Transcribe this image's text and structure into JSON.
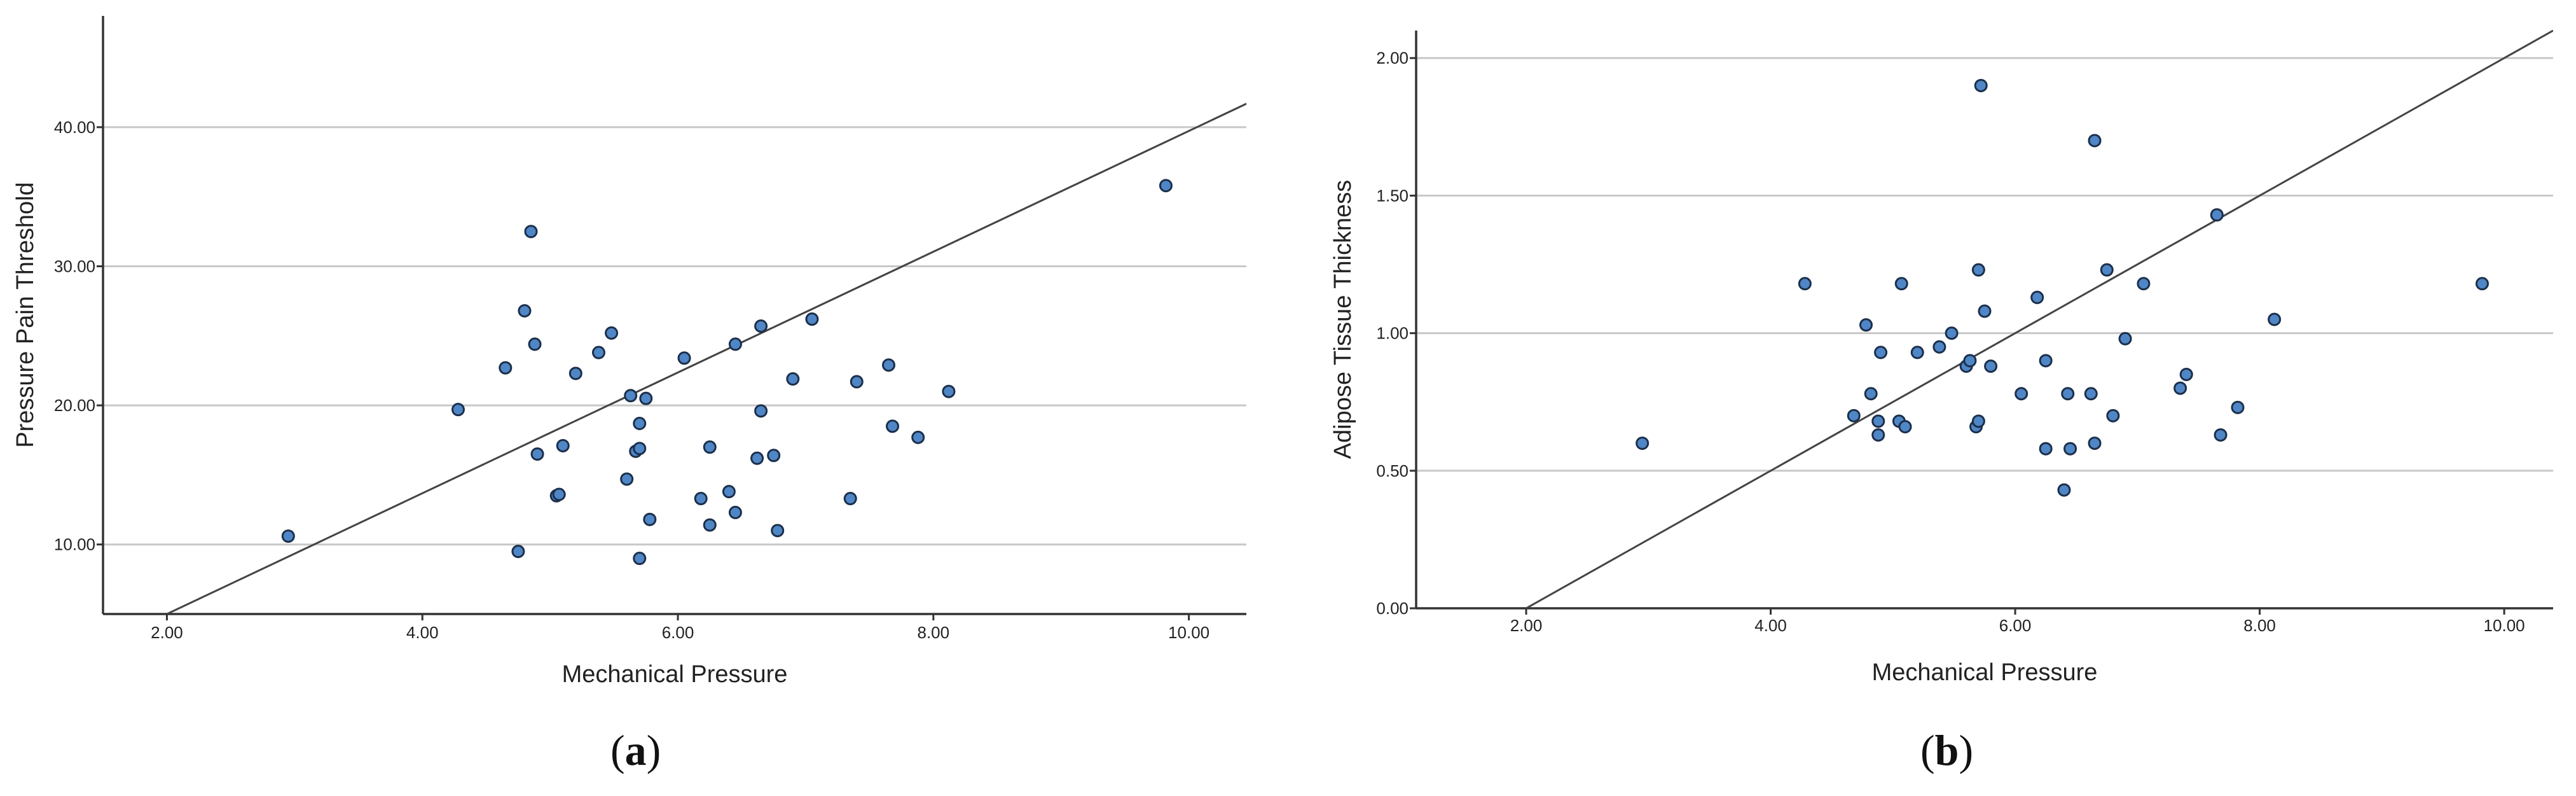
{
  "chart_data": [
    {
      "panel": "a",
      "type": "scatter",
      "caption": {
        "open": "(",
        "letter": "a",
        "close": ")"
      },
      "xlabel": "Mechanical Pressure",
      "ylabel": "Pressure Pain Threshold",
      "xlim": [
        1.5,
        10.45
      ],
      "ylim": [
        5.0,
        48.0
      ],
      "xticks": [
        "2.00",
        "4.00",
        "6.00",
        "8.00",
        "10.00"
      ],
      "yticks": [
        "10.00",
        "20.00",
        "30.00",
        "40.00"
      ],
      "grid": "horizontal",
      "legend": "none",
      "fit_line": {
        "x": [
          2.0,
          10.5
        ],
        "y": [
          5.0,
          41.9
        ]
      },
      "points": [
        {
          "x": 2.95,
          "y": 10.6
        },
        {
          "x": 4.28,
          "y": 19.7
        },
        {
          "x": 4.65,
          "y": 22.7
        },
        {
          "x": 4.75,
          "y": 9.5
        },
        {
          "x": 4.8,
          "y": 26.8
        },
        {
          "x": 4.85,
          "y": 32.5
        },
        {
          "x": 4.88,
          "y": 24.4
        },
        {
          "x": 4.9,
          "y": 16.5
        },
        {
          "x": 5.05,
          "y": 13.5
        },
        {
          "x": 5.07,
          "y": 13.6
        },
        {
          "x": 5.1,
          "y": 17.1
        },
        {
          "x": 5.2,
          "y": 22.3
        },
        {
          "x": 5.38,
          "y": 23.8
        },
        {
          "x": 5.48,
          "y": 25.2
        },
        {
          "x": 5.6,
          "y": 14.7
        },
        {
          "x": 5.63,
          "y": 20.7
        },
        {
          "x": 5.67,
          "y": 16.7
        },
        {
          "x": 5.7,
          "y": 16.9
        },
        {
          "x": 5.7,
          "y": 18.7
        },
        {
          "x": 5.7,
          "y": 9.0
        },
        {
          "x": 5.75,
          "y": 20.5
        },
        {
          "x": 5.78,
          "y": 11.8
        },
        {
          "x": 6.05,
          "y": 23.4
        },
        {
          "x": 6.18,
          "y": 13.3
        },
        {
          "x": 6.25,
          "y": 11.4
        },
        {
          "x": 6.25,
          "y": 17.0
        },
        {
          "x": 6.4,
          "y": 13.8
        },
        {
          "x": 6.45,
          "y": 12.3
        },
        {
          "x": 6.45,
          "y": 24.4
        },
        {
          "x": 6.62,
          "y": 16.2
        },
        {
          "x": 6.65,
          "y": 25.7
        },
        {
          "x": 6.65,
          "y": 19.6
        },
        {
          "x": 6.75,
          "y": 16.4
        },
        {
          "x": 6.78,
          "y": 11.0
        },
        {
          "x": 6.9,
          "y": 21.9
        },
        {
          "x": 7.05,
          "y": 26.2
        },
        {
          "x": 7.35,
          "y": 13.3
        },
        {
          "x": 7.4,
          "y": 21.7
        },
        {
          "x": 7.65,
          "y": 22.9
        },
        {
          "x": 7.68,
          "y": 18.5
        },
        {
          "x": 7.88,
          "y": 17.7
        },
        {
          "x": 8.12,
          "y": 21.0
        },
        {
          "x": 9.82,
          "y": 35.8
        }
      ]
    },
    {
      "panel": "b",
      "type": "scatter",
      "caption": {
        "open": "(",
        "letter": "b",
        "close": ")"
      },
      "xlabel": "Mechanical Pressure",
      "ylabel": "Adipose Tissue Thickness",
      "xlim": [
        1.1,
        10.4
      ],
      "ylim": [
        0.0,
        2.1
      ],
      "xticks": [
        "2.00",
        "4.00",
        "6.00",
        "8.00",
        "10.00"
      ],
      "yticks": [
        "0.00",
        "0.50",
        "1.00",
        "1.50",
        "2.00"
      ],
      "grid": "horizontal",
      "legend": "none",
      "fit_line": {
        "x": [
          2.0,
          10.4
        ],
        "y": [
          0.0,
          2.1
        ]
      },
      "points": [
        {
          "x": 2.95,
          "y": 0.6
        },
        {
          "x": 4.28,
          "y": 1.18
        },
        {
          "x": 4.68,
          "y": 0.7
        },
        {
          "x": 4.78,
          "y": 1.03
        },
        {
          "x": 4.82,
          "y": 0.78
        },
        {
          "x": 4.88,
          "y": 0.63
        },
        {
          "x": 4.88,
          "y": 0.68
        },
        {
          "x": 4.9,
          "y": 0.93
        },
        {
          "x": 5.05,
          "y": 0.68
        },
        {
          "x": 5.07,
          "y": 1.18
        },
        {
          "x": 5.1,
          "y": 0.66
        },
        {
          "x": 5.2,
          "y": 0.93
        },
        {
          "x": 5.38,
          "y": 0.95
        },
        {
          "x": 5.48,
          "y": 1.0
        },
        {
          "x": 5.6,
          "y": 0.88
        },
        {
          "x": 5.63,
          "y": 0.9
        },
        {
          "x": 5.68,
          "y": 0.66
        },
        {
          "x": 5.7,
          "y": 0.68
        },
        {
          "x": 5.7,
          "y": 1.23
        },
        {
          "x": 5.72,
          "y": 1.9
        },
        {
          "x": 5.75,
          "y": 1.08
        },
        {
          "x": 5.8,
          "y": 0.88
        },
        {
          "x": 6.05,
          "y": 0.78
        },
        {
          "x": 6.18,
          "y": 1.13
        },
        {
          "x": 6.25,
          "y": 0.58
        },
        {
          "x": 6.25,
          "y": 0.9
        },
        {
          "x": 6.4,
          "y": 0.43
        },
        {
          "x": 6.43,
          "y": 0.78
        },
        {
          "x": 6.45,
          "y": 0.58
        },
        {
          "x": 6.62,
          "y": 0.78
        },
        {
          "x": 6.65,
          "y": 0.6
        },
        {
          "x": 6.65,
          "y": 1.7
        },
        {
          "x": 6.75,
          "y": 1.23
        },
        {
          "x": 6.8,
          "y": 0.7
        },
        {
          "x": 6.9,
          "y": 0.98
        },
        {
          "x": 7.05,
          "y": 1.18
        },
        {
          "x": 7.35,
          "y": 0.8
        },
        {
          "x": 7.4,
          "y": 0.85
        },
        {
          "x": 7.65,
          "y": 1.43
        },
        {
          "x": 7.68,
          "y": 0.63
        },
        {
          "x": 7.82,
          "y": 0.73
        },
        {
          "x": 8.12,
          "y": 1.05
        },
        {
          "x": 9.82,
          "y": 1.18
        }
      ]
    }
  ],
  "style": {
    "point_fill": "#4f86c6",
    "point_stroke": "#1c2f4a",
    "grid_color": "#c8c8c8",
    "axis_color": "#333333",
    "line_color": "#444444",
    "text_color": "#222222"
  }
}
